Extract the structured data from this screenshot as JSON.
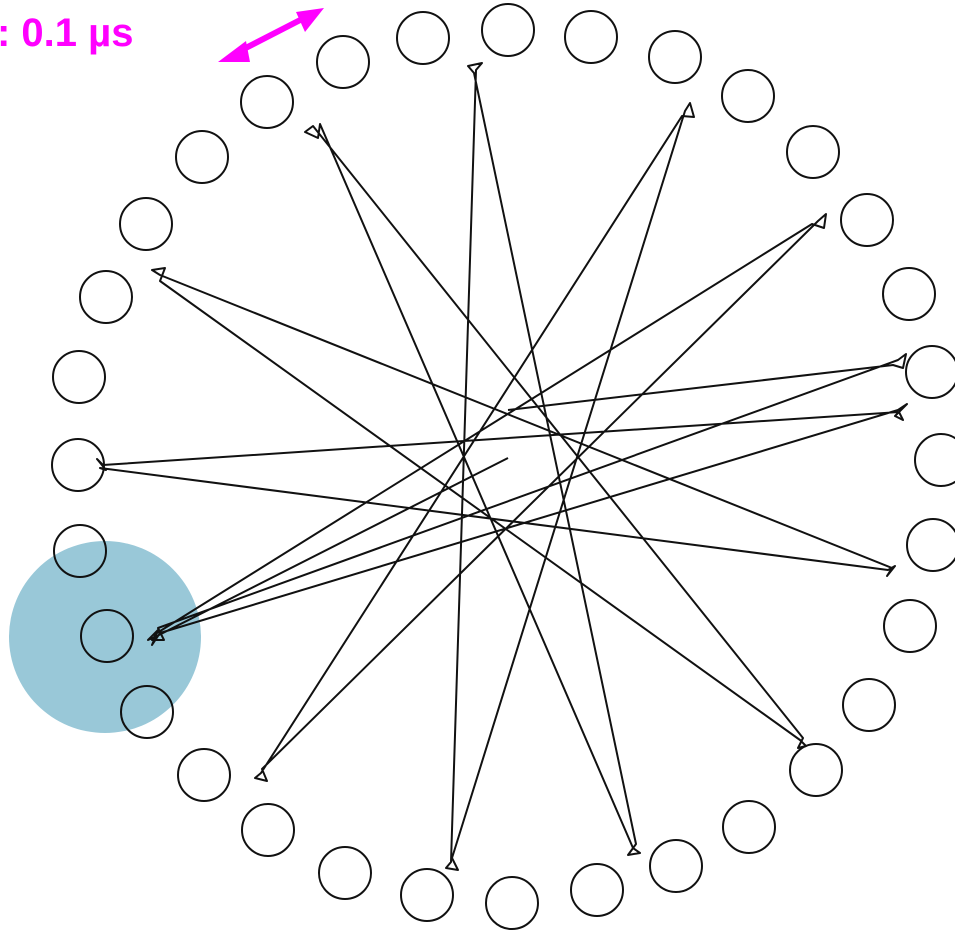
{
  "scale": {
    "label": ": 0.1 µs"
  },
  "colors": {
    "accent": "#ff00ff",
    "highlight": "#99c8d8",
    "ink": "#111111"
  },
  "icons": {
    "scale_arrow": "double-headed-arrow-icon"
  }
}
